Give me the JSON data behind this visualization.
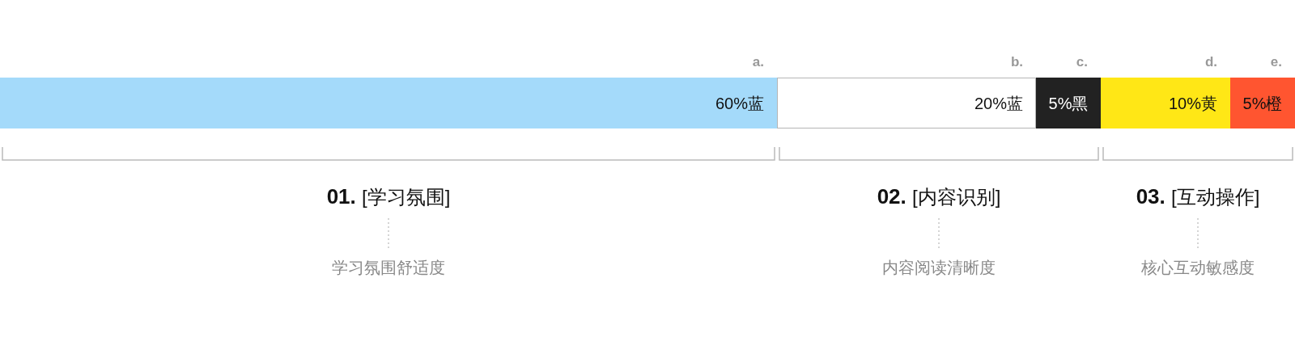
{
  "chart_data": {
    "type": "bar",
    "orientation": "horizontal",
    "stacked": true,
    "categories": [
      null
    ],
    "series": [
      {
        "name": "a.",
        "color": "#a4dafa",
        "values": [
          60
        ],
        "value_labels": [
          "60%蓝"
        ]
      },
      {
        "name": "b.",
        "color": "#ffffff",
        "values": [
          20
        ],
        "value_labels": [
          "20%蓝"
        ]
      },
      {
        "name": "c.",
        "color": "#222222",
        "values": [
          5
        ],
        "value_labels": [
          "5%黑"
        ]
      },
      {
        "name": "d.",
        "color": "#ffe716",
        "values": [
          10
        ],
        "value_labels": [
          "10%黄"
        ]
      },
      {
        "name": "e.",
        "color": "#ff5530",
        "values": [
          5
        ],
        "value_labels": [
          "5%橙"
        ]
      }
    ],
    "annotations": [
      "01. [学习氛围]",
      "学习氛围舒适度",
      "02. [内容识别]",
      "内容阅读清晰度",
      "03. [互动操作]",
      "核心互动敏感度"
    ]
  }
}
